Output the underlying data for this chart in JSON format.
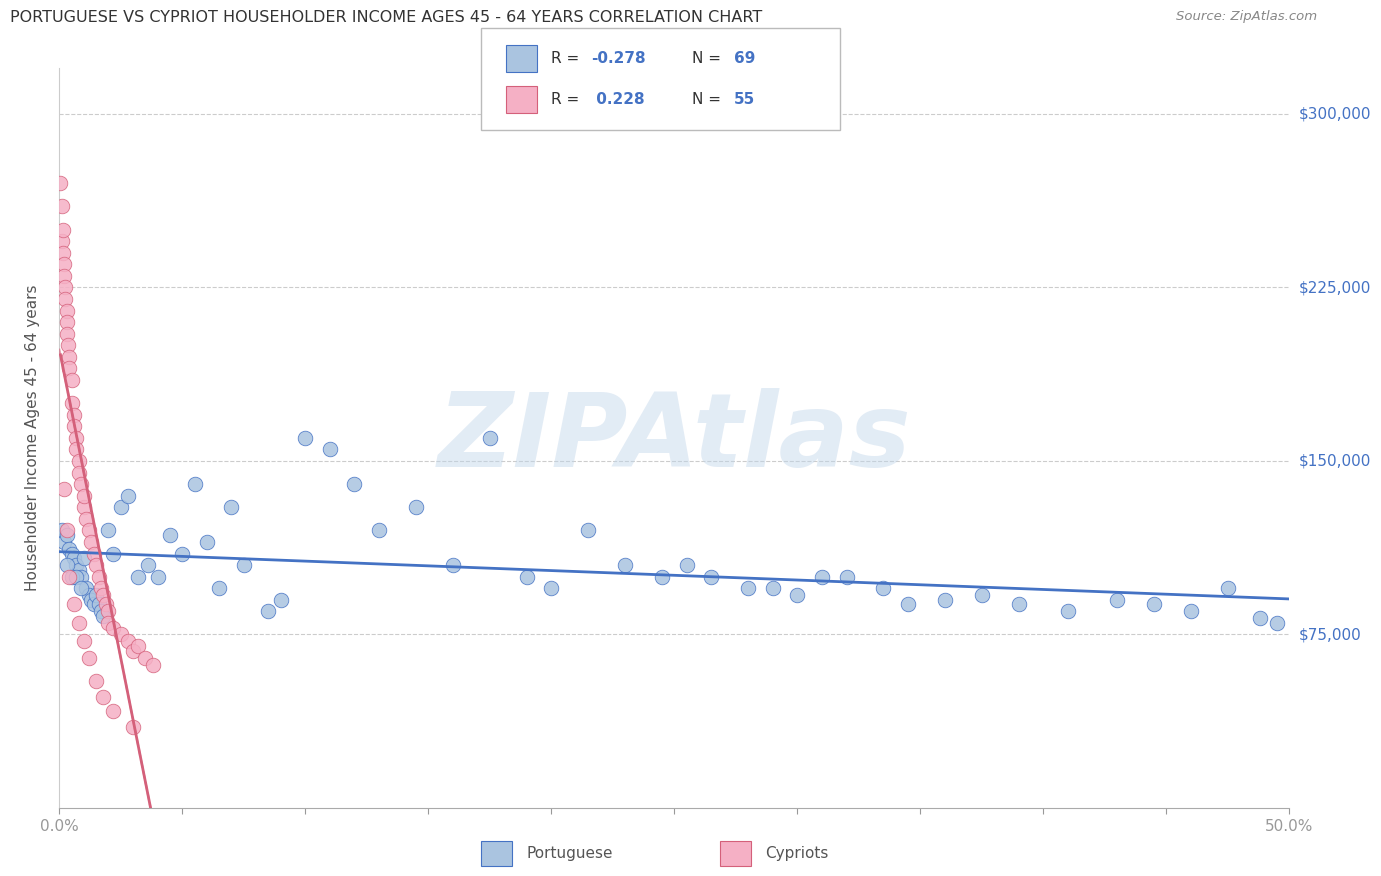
{
  "title": "PORTUGUESE VS CYPRIOT HOUSEHOLDER INCOME AGES 45 - 64 YEARS CORRELATION CHART",
  "source": "Source: ZipAtlas.com",
  "ylabel": "Householder Income Ages 45 - 64 years",
  "xlim": [
    0.0,
    0.5
  ],
  "ylim": [
    0,
    320000
  ],
  "xticks": [
    0.0,
    0.05,
    0.1,
    0.15,
    0.2,
    0.25,
    0.3,
    0.35,
    0.4,
    0.45,
    0.5
  ],
  "xticklabels": [
    "0.0%",
    "",
    "",
    "",
    "",
    "",
    "",
    "",
    "",
    "",
    "50.0%"
  ],
  "ytick_positions": [
    75000,
    150000,
    225000,
    300000
  ],
  "ytick_labels": [
    "$75,000",
    "$150,000",
    "$225,000",
    "$300,000"
  ],
  "blue_color": "#aac4e0",
  "blue_line_color": "#4472c4",
  "pink_color": "#f5b0c5",
  "pink_line_color": "#d4607a",
  "watermark": "ZIPAtlas",
  "portuguese_x": [
    0.001,
    0.002,
    0.003,
    0.004,
    0.005,
    0.006,
    0.007,
    0.008,
    0.009,
    0.01,
    0.011,
    0.012,
    0.013,
    0.014,
    0.015,
    0.016,
    0.017,
    0.018,
    0.02,
    0.022,
    0.025,
    0.028,
    0.032,
    0.036,
    0.04,
    0.045,
    0.05,
    0.055,
    0.06,
    0.065,
    0.07,
    0.075,
    0.085,
    0.09,
    0.1,
    0.11,
    0.12,
    0.13,
    0.145,
    0.16,
    0.175,
    0.19,
    0.2,
    0.215,
    0.23,
    0.245,
    0.255,
    0.265,
    0.28,
    0.29,
    0.3,
    0.31,
    0.32,
    0.335,
    0.345,
    0.36,
    0.375,
    0.39,
    0.41,
    0.43,
    0.445,
    0.46,
    0.475,
    0.488,
    0.495,
    0.003,
    0.005,
    0.007,
    0.009
  ],
  "portuguese_y": [
    120000,
    115000,
    118000,
    112000,
    110000,
    108000,
    105000,
    103000,
    100000,
    108000,
    95000,
    92000,
    90000,
    88000,
    92000,
    88000,
    85000,
    83000,
    120000,
    110000,
    130000,
    135000,
    100000,
    105000,
    100000,
    118000,
    110000,
    140000,
    115000,
    95000,
    130000,
    105000,
    85000,
    90000,
    160000,
    155000,
    140000,
    120000,
    130000,
    105000,
    160000,
    100000,
    95000,
    120000,
    105000,
    100000,
    105000,
    100000,
    95000,
    95000,
    92000,
    100000,
    100000,
    95000,
    88000,
    90000,
    92000,
    88000,
    85000,
    90000,
    88000,
    85000,
    95000,
    82000,
    80000,
    105000,
    100000,
    100000,
    95000
  ],
  "cypriot_x": [
    0.0005,
    0.001,
    0.001,
    0.0015,
    0.0015,
    0.002,
    0.002,
    0.0025,
    0.0025,
    0.003,
    0.003,
    0.003,
    0.0035,
    0.004,
    0.004,
    0.005,
    0.005,
    0.006,
    0.006,
    0.007,
    0.007,
    0.008,
    0.008,
    0.009,
    0.01,
    0.01,
    0.011,
    0.012,
    0.013,
    0.014,
    0.015,
    0.016,
    0.017,
    0.018,
    0.019,
    0.02,
    0.02,
    0.022,
    0.025,
    0.028,
    0.03,
    0.032,
    0.035,
    0.038,
    0.002,
    0.003,
    0.004,
    0.006,
    0.008,
    0.01,
    0.012,
    0.015,
    0.018,
    0.022,
    0.03
  ],
  "cypriot_y": [
    270000,
    260000,
    245000,
    240000,
    250000,
    235000,
    230000,
    225000,
    220000,
    215000,
    210000,
    205000,
    200000,
    195000,
    190000,
    185000,
    175000,
    170000,
    165000,
    160000,
    155000,
    150000,
    145000,
    140000,
    130000,
    135000,
    125000,
    120000,
    115000,
    110000,
    105000,
    100000,
    95000,
    92000,
    88000,
    85000,
    80000,
    78000,
    75000,
    72000,
    68000,
    70000,
    65000,
    62000,
    138000,
    120000,
    100000,
    88000,
    80000,
    72000,
    65000,
    55000,
    48000,
    42000,
    35000
  ]
}
